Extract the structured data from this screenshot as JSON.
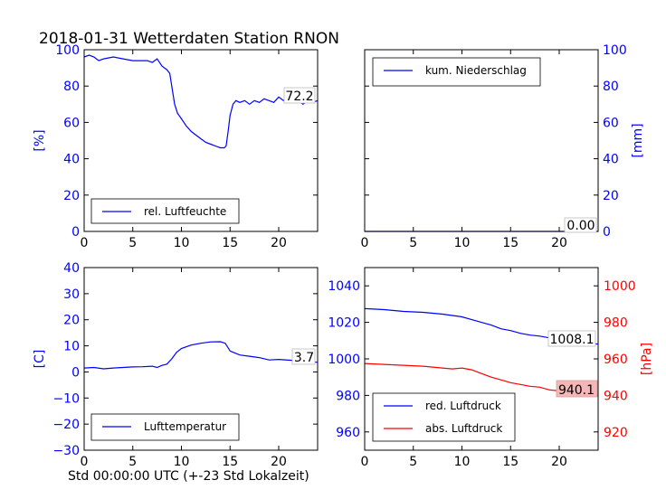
{
  "title": "2018-01-31 Wetterdaten Station RNON",
  "xlabel": "Std 00:00:00 UTC (+-23 Std Lokalzeit)",
  "colors": {
    "blue": "#0000ff",
    "red": "#ff0000",
    "box_red": "#f4b6b6"
  },
  "chart_data": [
    {
      "type": "line",
      "panel": "top-left",
      "ylabel": "[%]",
      "xlim": [
        0,
        24
      ],
      "ylim": [
        0,
        100
      ],
      "xticks": [
        0,
        5,
        10,
        15,
        20
      ],
      "yticks": [
        0,
        20,
        40,
        60,
        80,
        100
      ],
      "legend_position": "lower-center",
      "annotation": "72.2",
      "series": [
        {
          "name": "rel. Luftfeuchte",
          "color": "#0000ff",
          "x": [
            0,
            0.5,
            1,
            1.5,
            2,
            3,
            4,
            5,
            6,
            6.5,
            7,
            7.5,
            8,
            8.5,
            8.8,
            9,
            9.3,
            9.6,
            10,
            10.5,
            11,
            11.5,
            12,
            12.5,
            13,
            13.5,
            14,
            14.4,
            14.6,
            14.8,
            15,
            15.3,
            15.6,
            16,
            16.5,
            17,
            17.5,
            18,
            18.5,
            19,
            19.5,
            20,
            20.5,
            21,
            21.5,
            22,
            22.5,
            23,
            23.5,
            24
          ],
          "y": [
            96,
            97,
            96,
            94,
            95,
            96,
            95,
            94,
            94,
            94,
            93,
            95,
            91,
            89,
            87,
            80,
            70,
            65,
            62,
            58,
            55,
            53,
            51,
            49,
            48,
            47,
            46,
            46,
            47,
            55,
            64,
            70,
            72,
            71,
            72,
            70,
            72,
            71,
            73,
            72,
            71,
            74,
            72,
            73,
            71,
            72,
            70,
            72,
            71,
            72
          ]
        }
      ]
    },
    {
      "type": "line",
      "panel": "top-right",
      "ylabel": "[mm]",
      "xlim": [
        0,
        24
      ],
      "ylim": [
        0,
        100
      ],
      "xticks": [
        0,
        5,
        10,
        15,
        20
      ],
      "yticks": [
        0,
        20,
        40,
        60,
        80,
        100
      ],
      "legend_position": "upper-left",
      "annotation": "0.00",
      "series": [
        {
          "name": "kum. Niederschlag",
          "color": "#0000ff",
          "x": [
            0,
            24
          ],
          "y": [
            0,
            0
          ]
        }
      ]
    },
    {
      "type": "line",
      "panel": "bottom-left",
      "ylabel": "[C]",
      "xlim": [
        0,
        24
      ],
      "ylim": [
        -30,
        40
      ],
      "xticks": [
        0,
        5,
        10,
        15,
        20
      ],
      "yticks": [
        -30,
        -20,
        -10,
        0,
        10,
        20,
        30,
        40
      ],
      "legend_position": "lower-center",
      "annotation": "3.7",
      "series": [
        {
          "name": "Lufttemperatur",
          "color": "#0000ff",
          "x": [
            0,
            1,
            2,
            3,
            4,
            5,
            6,
            7,
            7.5,
            8,
            8.5,
            9,
            9.5,
            10,
            11,
            12,
            13,
            14,
            14.5,
            15,
            16,
            17,
            18,
            19,
            20,
            21,
            22,
            23,
            24
          ],
          "y": [
            1.5,
            1.7,
            1.2,
            1.5,
            1.7,
            1.9,
            2.0,
            2.2,
            1.7,
            2.5,
            3.0,
            5.0,
            7.5,
            9.0,
            10.3,
            11.0,
            11.5,
            11.6,
            11.0,
            8.0,
            6.5,
            6.0,
            5.5,
            4.6,
            4.8,
            4.5,
            4.3,
            4.0,
            3.7
          ]
        }
      ]
    },
    {
      "type": "line",
      "panel": "bottom-right",
      "ylim": [
        950,
        1050
      ],
      "ylim_right": [
        910,
        1010
      ],
      "ylabel_right": "[hPa]",
      "xlim": [
        0,
        24
      ],
      "xticks": [
        0,
        5,
        10,
        15,
        20
      ],
      "yticks": [
        960,
        980,
        1000,
        1020,
        1040
      ],
      "yticks_right": [
        920,
        940,
        960,
        980,
        1000
      ],
      "legend_position": "lower-left",
      "annotations": [
        "1008.1",
        "940.1"
      ],
      "series": [
        {
          "name": "red. Luftdruck",
          "color": "#0000ff",
          "axis": "left",
          "x": [
            0,
            2,
            4,
            6,
            8,
            10,
            11,
            12,
            13,
            14,
            15,
            16,
            17,
            18,
            19,
            20,
            21,
            22,
            23,
            24
          ],
          "y": [
            1027.5,
            1027,
            1026,
            1025.5,
            1024.5,
            1023,
            1021.5,
            1020,
            1018.5,
            1016.5,
            1015.5,
            1014,
            1013,
            1012.5,
            1011.5,
            1010.5,
            1010,
            1009.5,
            1008.5,
            1008.1
          ]
        },
        {
          "name": "abs. Luftdruck",
          "color": "#ff0000",
          "axis": "right",
          "x": [
            0,
            2,
            4,
            6,
            8,
            9,
            10,
            11,
            12,
            13,
            14,
            15,
            16,
            17,
            18,
            19,
            20,
            21,
            22,
            23,
            24
          ],
          "y": [
            957.5,
            957,
            956.5,
            956,
            955,
            954.5,
            955,
            954,
            952,
            950,
            948.5,
            947,
            946,
            945,
            944.5,
            943,
            942.5,
            941.5,
            941,
            940.5,
            940.1
          ]
        }
      ]
    }
  ]
}
